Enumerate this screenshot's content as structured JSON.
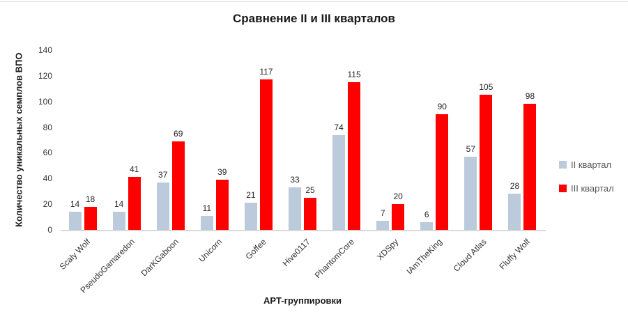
{
  "chart_data": {
    "type": "bar",
    "title": "Сравнение II и III кварталов",
    "xlabel": "APT-группировки",
    "ylabel": "Количество уникальных семплов ВПО",
    "categories": [
      "Scaly Wolf",
      "PseudoGamaredon",
      "DarKGaboon",
      "Unicorn",
      "Goffee",
      "Hive0117",
      "PhantomCore",
      "XDSpy",
      "IAmTheKing",
      "Cloud Atlas",
      "Fluffy Wolf"
    ],
    "series": [
      {
        "name": "II квартал",
        "color": "#bccbdc",
        "values": [
          14,
          14,
          37,
          11,
          21,
          33,
          74,
          7,
          6,
          57,
          28
        ]
      },
      {
        "name": "III квартал",
        "color": "#ff0000",
        "values": [
          18,
          41,
          69,
          39,
          117,
          25,
          115,
          20,
          90,
          105,
          98
        ]
      }
    ],
    "ylim": [
      0,
      140
    ],
    "yticks": [
      0,
      20,
      40,
      60,
      80,
      100,
      120,
      140
    ],
    "grid": false,
    "legend_position": "right",
    "data_labels": true
  },
  "colors": {
    "axis_line": "#d9d9d9",
    "data_label": "#262626",
    "tick_label": "#333333",
    "legend_text": "#595959",
    "title_text": "#1a1a1a"
  }
}
